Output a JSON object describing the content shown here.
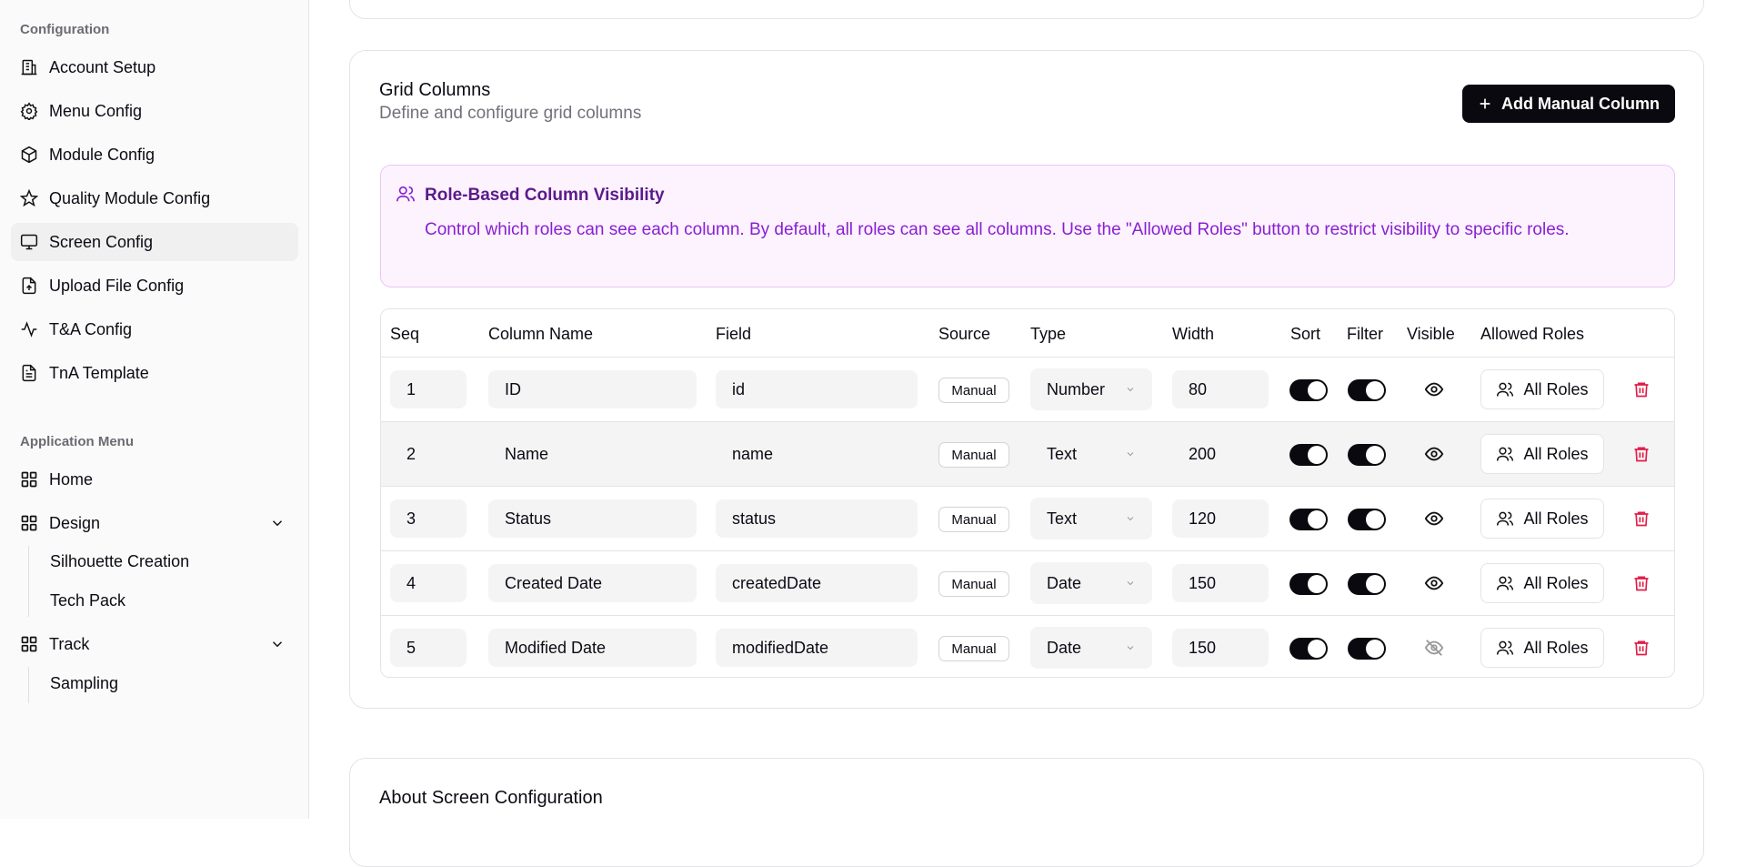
{
  "sidebar": {
    "config_label": "Configuration",
    "config_items": [
      {
        "label": "Account Setup",
        "icon": "building-icon"
      },
      {
        "label": "Menu Config",
        "icon": "gear-icon"
      },
      {
        "label": "Module Config",
        "icon": "package-icon"
      },
      {
        "label": "Quality Module Config",
        "icon": "star-icon"
      },
      {
        "label": "Screen Config",
        "icon": "monitor-icon",
        "active": true
      },
      {
        "label": "Upload File Config",
        "icon": "file-upload-icon"
      },
      {
        "label": "T&A Config",
        "icon": "activity-icon"
      },
      {
        "label": "TnA Template",
        "icon": "file-text-icon"
      }
    ],
    "app_label": "Application Menu",
    "home": "Home",
    "design": "Design",
    "design_children": [
      "Silhouette Creation",
      "Tech Pack"
    ],
    "track": "Track",
    "track_children": [
      "Sampling"
    ]
  },
  "grid": {
    "title": "Grid Columns",
    "subtitle": "Define and configure grid columns",
    "add_button": "Add Manual Column",
    "info_title": "Role-Based Column Visibility",
    "info_text": "Control which roles can see each column. By default, all roles can see all columns. Use the \"Allowed Roles\" button to restrict visibility to specific roles.",
    "headers": [
      "Seq",
      "Column Name",
      "Field",
      "Source",
      "Type",
      "Width",
      "Sort",
      "Filter",
      "Visible",
      "Allowed Roles"
    ],
    "rows": [
      {
        "seq": "1",
        "name": "ID",
        "field": "id",
        "source": "Manual",
        "type": "Number",
        "width": "80",
        "sort": true,
        "filter": true,
        "visible": true,
        "roles": "All Roles"
      },
      {
        "seq": "2",
        "name": "Name",
        "field": "name",
        "source": "Manual",
        "type": "Text",
        "width": "200",
        "sort": true,
        "filter": true,
        "visible": true,
        "roles": "All Roles"
      },
      {
        "seq": "3",
        "name": "Status",
        "field": "status",
        "source": "Manual",
        "type": "Text",
        "width": "120",
        "sort": true,
        "filter": true,
        "visible": true,
        "roles": "All Roles"
      },
      {
        "seq": "4",
        "name": "Created Date",
        "field": "createdDate",
        "source": "Manual",
        "type": "Date",
        "width": "150",
        "sort": true,
        "filter": true,
        "visible": true,
        "roles": "All Roles"
      },
      {
        "seq": "5",
        "name": "Modified Date",
        "field": "modifiedDate",
        "source": "Manual",
        "type": "Date",
        "width": "150",
        "sort": true,
        "filter": true,
        "visible": false,
        "roles": "All Roles"
      }
    ]
  },
  "about": {
    "title": "About Screen Configuration"
  },
  "colors": {
    "accent": "#09090f",
    "info_bg": "#fcf3ff",
    "info_text": "#8a1fd1",
    "delete": "#e11d48"
  }
}
